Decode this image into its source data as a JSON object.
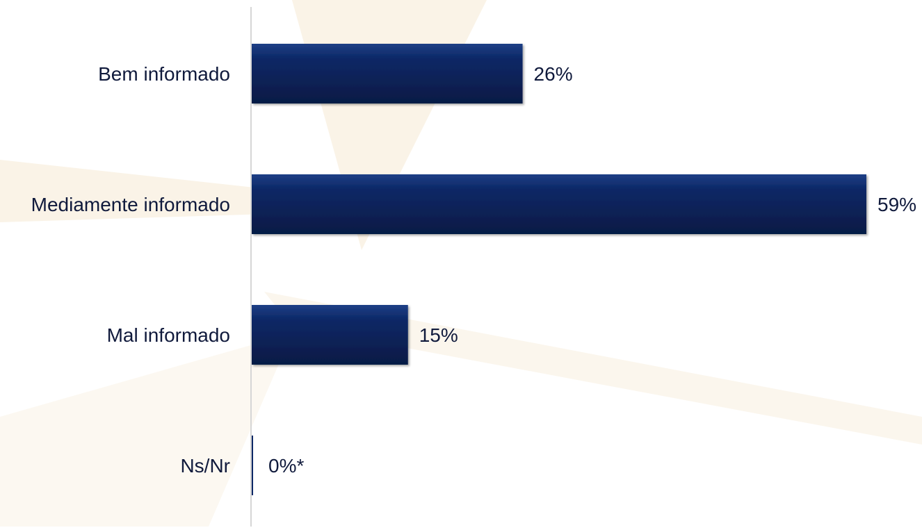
{
  "chart_data": {
    "type": "bar",
    "orientation": "horizontal",
    "categories": [
      "Bem informado",
      "Mediamente informado",
      "Mal informado",
      "Ns/Nr"
    ],
    "values": [
      26,
      59,
      15,
      0
    ],
    "value_labels": [
      "26%",
      "59%",
      "15%",
      "0%*"
    ],
    "xlim": [
      0,
      59
    ],
    "grid": false,
    "legend": "none"
  },
  "colors": {
    "bar_fill": "#0c2866",
    "bar_highlight": "#1e3f86",
    "bar_shade": "#061a45",
    "axis_line": "#d6d6d6",
    "label_text": "#101a3c",
    "watermark": "#f6ead4"
  }
}
